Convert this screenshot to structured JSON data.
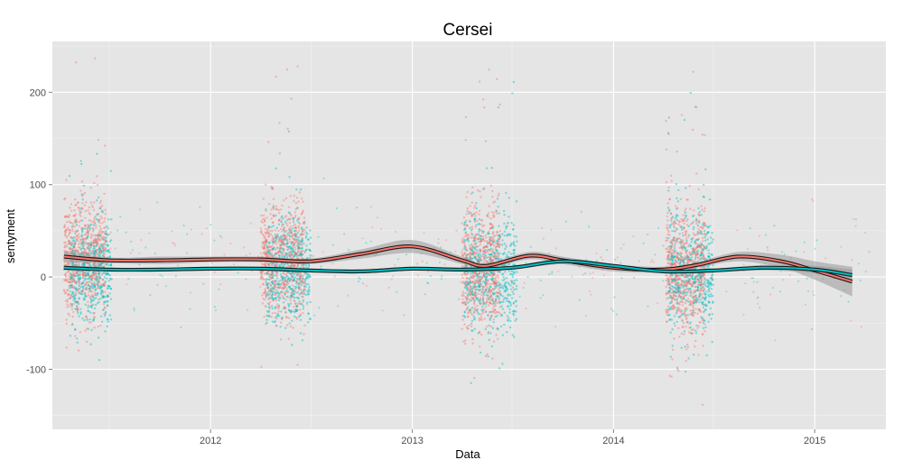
{
  "chart_data": {
    "type": "scatter",
    "title": "Cersei",
    "xlabel": "Data",
    "ylabel": "sentyment",
    "x_ticks": [
      "2012",
      "2013",
      "2014",
      "2015"
    ],
    "y_ticks": [
      -100,
      0,
      100,
      200
    ],
    "xlim": [
      "2011-03-20",
      "2015-05-10"
    ],
    "ylim": [
      -165,
      255
    ],
    "grid": true,
    "legend": "none",
    "background": "#e5e5e5",
    "series": [
      {
        "color": "#f8766d",
        "point_clusters": [
          {
            "start": "2011-04-10",
            "end": "2011-06-25",
            "mean": 20,
            "sd": 30,
            "min": -80,
            "max": 245
          },
          {
            "start": "2012-04-01",
            "end": "2012-06-20",
            "mean": 18,
            "sd": 32,
            "min": -100,
            "max": 240
          },
          {
            "start": "2013-03-31",
            "end": "2013-06-10",
            "mean": 10,
            "sd": 32,
            "min": -110,
            "max": 243
          },
          {
            "start": "2014-04-06",
            "end": "2014-06-16",
            "mean": 8,
            "sd": 35,
            "min": -140,
            "max": 230
          }
        ],
        "smooth": {
          "x": [
            "2011-04-10",
            "2011-07-01",
            "2011-10-01",
            "2012-01-01",
            "2012-04-01",
            "2012-07-01",
            "2012-10-01",
            "2013-01-01",
            "2013-04-01",
            "2013-05-15",
            "2013-08-01",
            "2013-10-01",
            "2014-01-01",
            "2014-04-01",
            "2014-06-01",
            "2014-08-15",
            "2014-11-01",
            "2015-01-01",
            "2015-03-10"
          ],
          "y": [
            22,
            18,
            18,
            19,
            19,
            17,
            25,
            33,
            18,
            12,
            23,
            18,
            10,
            8,
            13,
            22,
            17,
            7,
            -5
          ],
          "band": [
            6,
            3,
            4,
            3,
            3,
            3,
            5,
            7,
            4,
            3,
            4,
            4,
            4,
            3,
            3,
            5,
            7,
            10,
            16
          ]
        }
      },
      {
        "color": "#00bfc4",
        "point_clusters": [
          {
            "start": "2011-04-20",
            "end": "2011-07-05",
            "mean": 8,
            "sd": 26,
            "min": -90,
            "max": 140
          },
          {
            "start": "2012-04-10",
            "end": "2012-07-01",
            "mean": 8,
            "sd": 28,
            "min": -130,
            "max": 170
          },
          {
            "start": "2013-04-05",
            "end": "2013-07-10",
            "mean": 5,
            "sd": 30,
            "min": -120,
            "max": 215
          },
          {
            "start": "2014-04-10",
            "end": "2014-07-01",
            "mean": 6,
            "sd": 30,
            "min": -130,
            "max": 210
          }
        ],
        "smooth": {
          "x": [
            "2011-04-10",
            "2011-07-01",
            "2011-10-01",
            "2012-01-01",
            "2012-04-01",
            "2012-07-01",
            "2012-10-01",
            "2013-01-01",
            "2013-04-01",
            "2013-07-01",
            "2013-10-01",
            "2014-01-01",
            "2014-04-01",
            "2014-07-01",
            "2014-10-01",
            "2015-01-01",
            "2015-03-10"
          ],
          "y": [
            10,
            8,
            8,
            9,
            9,
            7,
            6,
            9,
            8,
            10,
            17,
            12,
            6,
            7,
            10,
            8,
            2
          ],
          "band": [
            3,
            2,
            2,
            2,
            2,
            2,
            2,
            2,
            2,
            2,
            3,
            2,
            2,
            2,
            3,
            4,
            6
          ]
        }
      }
    ]
  }
}
